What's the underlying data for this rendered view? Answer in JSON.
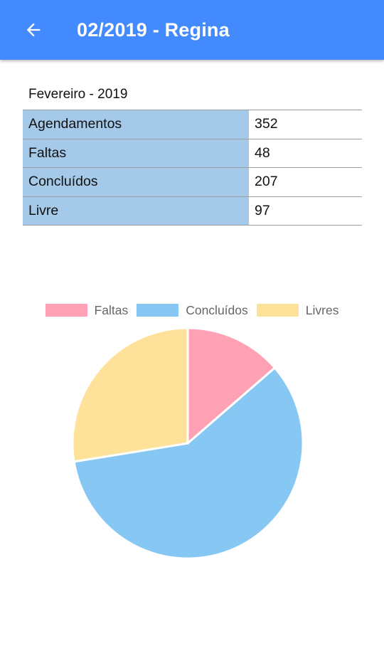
{
  "appbar": {
    "title": "02/2019 - Regina",
    "back_icon": "arrow-left-icon"
  },
  "summary": {
    "period": "Fevereiro - 2019",
    "rows": [
      {
        "label": "Agendamentos",
        "value": "352"
      },
      {
        "label": "Faltas",
        "value": "48"
      },
      {
        "label": "Concluídos",
        "value": "207"
      },
      {
        "label": "Livre",
        "value": "97"
      }
    ]
  },
  "chart_data": {
    "type": "pie",
    "title": "",
    "legend_position": "top",
    "categories": [
      "Faltas",
      "Concluídos",
      "Livres"
    ],
    "values": [
      48,
      207,
      97
    ],
    "colors": [
      "#ffa1b5",
      "#86c7f3",
      "#ffe29a"
    ]
  }
}
